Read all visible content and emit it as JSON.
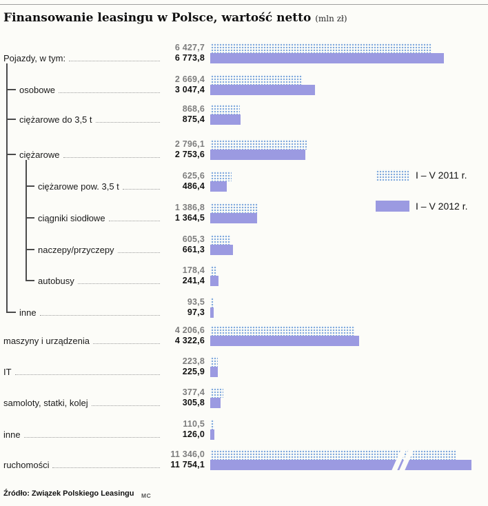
{
  "title": "Finansowanie leasingu w Polsce, wartość netto",
  "unit": "(mln zł)",
  "legend": {
    "s2011": "I – V 2011 r.",
    "s2012": "I – V 2012 r."
  },
  "source": "Źródło: Związek Polskiego Leasingu",
  "credit": "MC",
  "colors": {
    "solid_2012": "#9b9ae1",
    "dot_2011": "#7fa8dd"
  },
  "chart_data": {
    "type": "bar",
    "orientation": "horizontal",
    "value_unit": "mln zł",
    "series": [
      "I – V 2011 r.",
      "I – V 2012 r."
    ],
    "note": "last row bar truncated with axis-break marks",
    "rows": [
      {
        "label": "Pojazdy, w tym:",
        "indent": 0,
        "v2011": 6427.7,
        "v2012": 6773.8,
        "d2011": "6 427,7",
        "d2012": "6 773,8"
      },
      {
        "label": "osobowe",
        "indent": 1,
        "v2011": 2669.4,
        "v2012": 3047.4,
        "d2011": "2 669,4",
        "d2012": "3 047,4"
      },
      {
        "label": "ciężarowe do 3,5 t",
        "indent": 1,
        "v2011": 868.6,
        "v2012": 875.4,
        "d2011": "868,6",
        "d2012": "875,4"
      },
      {
        "label": "ciężarowe",
        "indent": 1,
        "v2011": 2796.1,
        "v2012": 2753.6,
        "d2011": "2 796,1",
        "d2012": "2 753,6"
      },
      {
        "label": "ciężarowe pow. 3,5 t",
        "indent": 2,
        "v2011": 625.6,
        "v2012": 486.4,
        "d2011": "625,6",
        "d2012": "486,4"
      },
      {
        "label": "ciągniki siodłowe",
        "indent": 2,
        "v2011": 1386.8,
        "v2012": 1364.5,
        "d2011": "1 386,8",
        "d2012": "1 364,5"
      },
      {
        "label": "naczepy/przyczepy",
        "indent": 2,
        "v2011": 605.3,
        "v2012": 661.3,
        "d2011": "605,3",
        "d2012": "661,3"
      },
      {
        "label": "autobusy",
        "indent": 2,
        "v2011": 178.4,
        "v2012": 241.4,
        "d2011": "178,4",
        "d2012": "241,4"
      },
      {
        "label": "inne",
        "indent": 1,
        "v2011": 93.5,
        "v2012": 97.3,
        "d2011": "93,5",
        "d2012": "97,3"
      },
      {
        "label": "maszyny i urządzenia",
        "indent": 0,
        "v2011": 4206.6,
        "v2012": 4322.6,
        "d2011": "4 206,6",
        "d2012": "4 322,6"
      },
      {
        "label": "IT",
        "indent": 0,
        "v2011": 223.8,
        "v2012": 225.9,
        "d2011": "223,8",
        "d2012": "225,9"
      },
      {
        "label": "samoloty, statki, kolej",
        "indent": 0,
        "v2011": 377.4,
        "v2012": 305.8,
        "d2011": "377,4",
        "d2012": "305,8"
      },
      {
        "label": "inne",
        "indent": 0,
        "v2011": 110.5,
        "v2012": 126.0,
        "d2011": "110,5",
        "d2012": "126,0"
      },
      {
        "label": "ruchomości",
        "indent": 0,
        "v2011": 11346.0,
        "v2012": 11754.1,
        "d2011": "11 346,0",
        "d2012": "11 754,1",
        "break": true
      }
    ]
  }
}
